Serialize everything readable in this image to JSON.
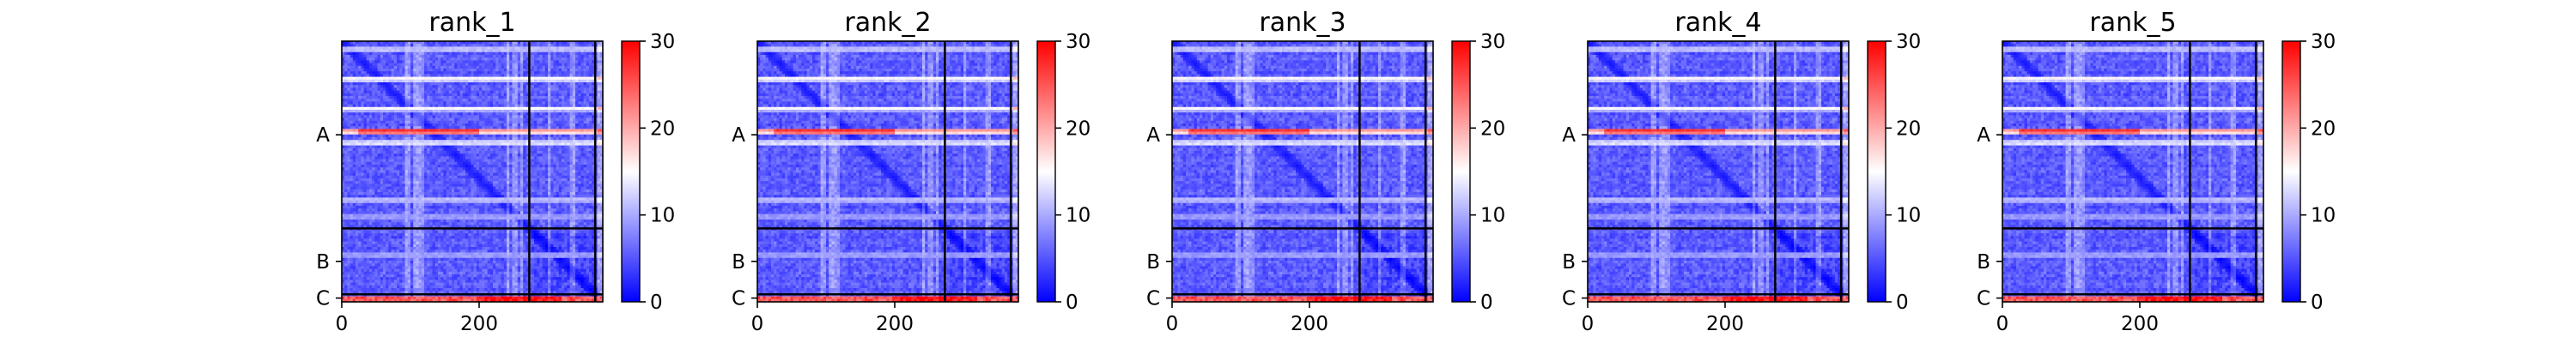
{
  "chart_data": [
    {
      "type": "heatmap",
      "title": "rank_1",
      "xlim": [
        0,
        380
      ],
      "ylim": [
        380,
        0
      ],
      "x_ticks": [
        0,
        200
      ],
      "y_tick_labels": [
        "A",
        "B",
        "C"
      ],
      "chain_boundaries": [
        0,
        273,
        369,
        380
      ],
      "colorbar": {
        "ticks": [
          0,
          10,
          20,
          30
        ],
        "range": [
          0,
          30
        ],
        "colormap": "bwr"
      },
      "colors": {
        "low": "#0000ff",
        "mid": "#ffffff",
        "high": "#ff0000"
      }
    },
    {
      "type": "heatmap",
      "title": "rank_2",
      "xlim": [
        0,
        380
      ],
      "ylim": [
        380,
        0
      ],
      "x_ticks": [
        0,
        200
      ],
      "y_tick_labels": [
        "A",
        "B",
        "C"
      ],
      "chain_boundaries": [
        0,
        273,
        369,
        380
      ],
      "colorbar": {
        "ticks": [
          0,
          10,
          20,
          30
        ],
        "range": [
          0,
          30
        ],
        "colormap": "bwr"
      },
      "colors": {
        "low": "#0000ff",
        "mid": "#ffffff",
        "high": "#ff0000"
      }
    },
    {
      "type": "heatmap",
      "title": "rank_3",
      "xlim": [
        0,
        380
      ],
      "ylim": [
        380,
        0
      ],
      "x_ticks": [
        0,
        200
      ],
      "y_tick_labels": [
        "A",
        "B",
        "C"
      ],
      "chain_boundaries": [
        0,
        273,
        369,
        380
      ],
      "colorbar": {
        "ticks": [
          0,
          10,
          20,
          30
        ],
        "range": [
          0,
          30
        ],
        "colormap": "bwr"
      },
      "colors": {
        "low": "#0000ff",
        "mid": "#ffffff",
        "high": "#ff0000"
      }
    },
    {
      "type": "heatmap",
      "title": "rank_4",
      "xlim": [
        0,
        380
      ],
      "ylim": [
        380,
        0
      ],
      "x_ticks": [
        0,
        200
      ],
      "y_tick_labels": [
        "A",
        "B",
        "C"
      ],
      "chain_boundaries": [
        0,
        273,
        369,
        380
      ],
      "colorbar": {
        "ticks": [
          0,
          10,
          20,
          30
        ],
        "range": [
          0,
          30
        ],
        "colormap": "bwr"
      },
      "colors": {
        "low": "#0000ff",
        "mid": "#ffffff",
        "high": "#ff0000"
      }
    },
    {
      "type": "heatmap",
      "title": "rank_5",
      "xlim": [
        0,
        380
      ],
      "ylim": [
        380,
        0
      ],
      "x_ticks": [
        0,
        200
      ],
      "y_tick_labels": [
        "A",
        "B",
        "C"
      ],
      "chain_boundaries": [
        0,
        273,
        369,
        380
      ],
      "colorbar": {
        "ticks": [
          0,
          10,
          20,
          30
        ],
        "range": [
          0,
          30
        ],
        "colormap": "bwr"
      },
      "colors": {
        "low": "#0000ff",
        "mid": "#ffffff",
        "high": "#ff0000"
      }
    }
  ]
}
